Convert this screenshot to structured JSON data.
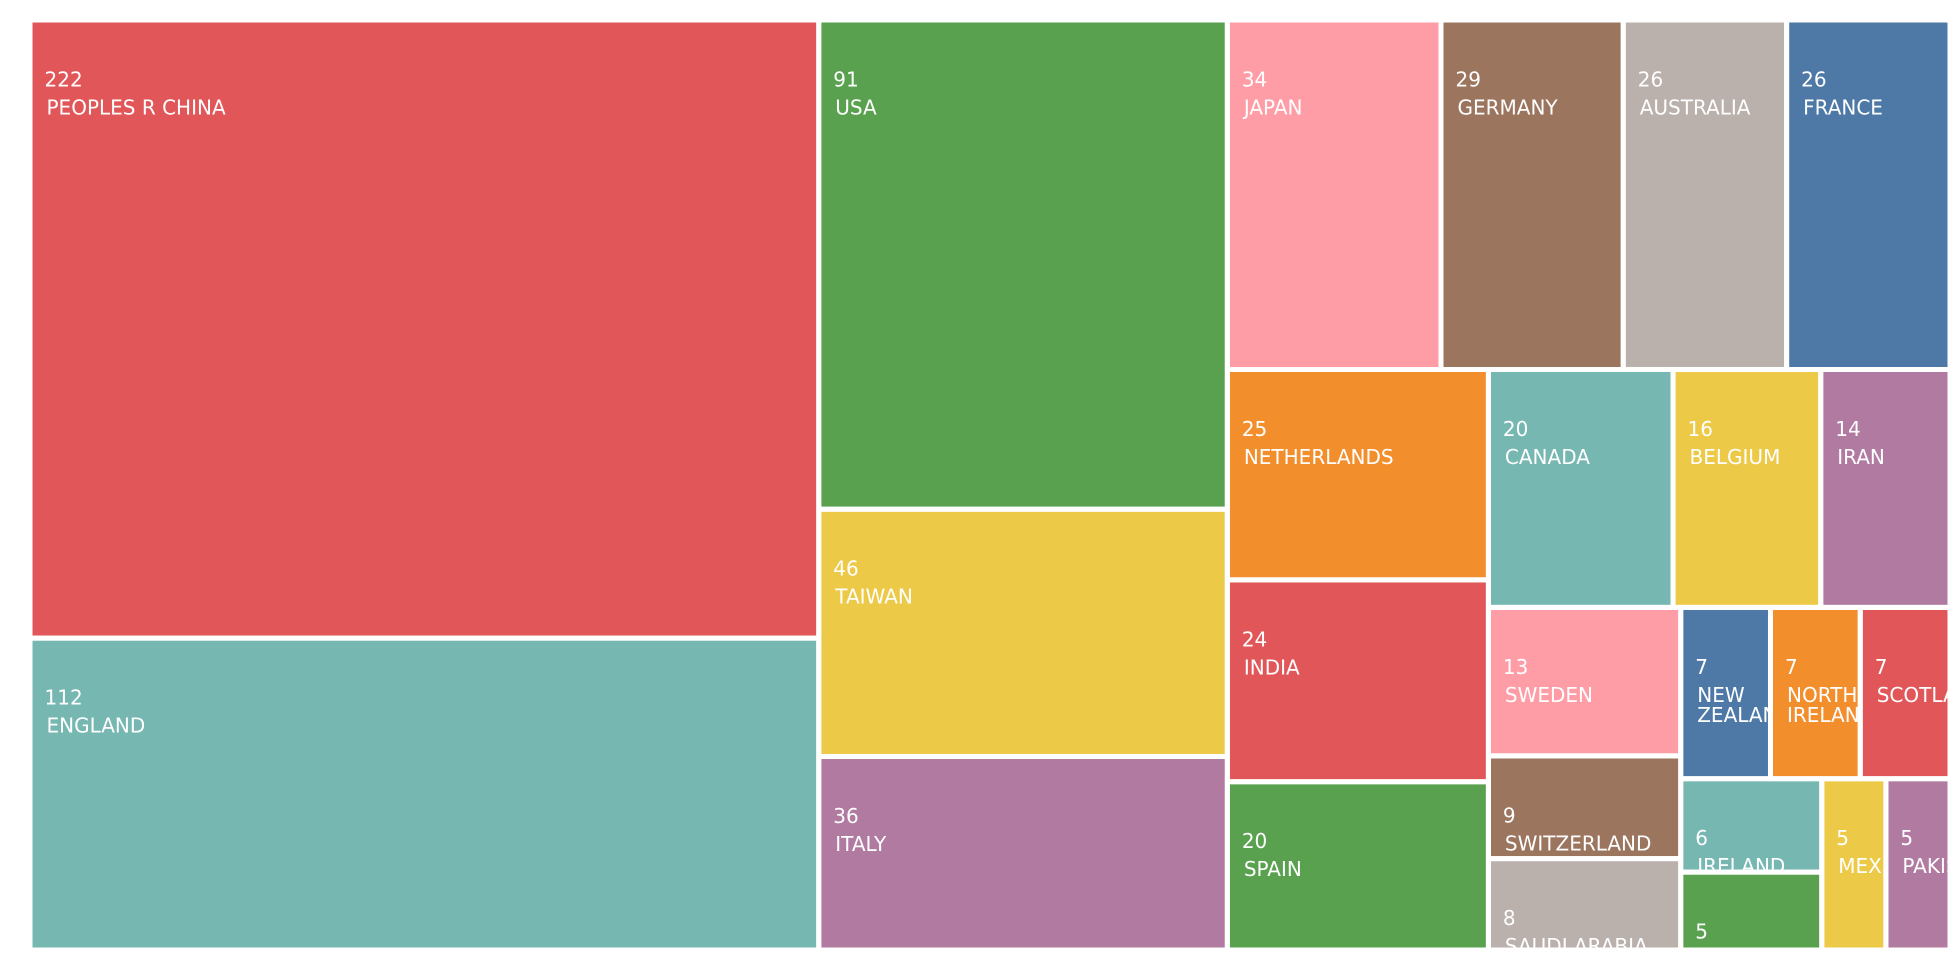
{
  "chart_data": {
    "type": "treemap",
    "categories": [
      "PEOPLES R CHINA",
      "ENGLAND",
      "USA",
      "TAIWAN",
      "ITALY",
      "JAPAN",
      "GERMANY",
      "AUSTRALIA",
      "FRANCE",
      "NETHERLANDS",
      "INDIA",
      "SPAIN",
      "CANADA",
      "BELGIUM",
      "IRAN",
      "SWEDEN",
      "SWITZERLAND",
      "SAUDI ARABIA",
      "NEW ZEALAND",
      "NORTH IRELAND",
      "SCOTLAND",
      "IRELAND",
      null,
      "MEXICO",
      "PAKISTAN"
    ],
    "values": [
      222,
      112,
      91,
      46,
      36,
      34,
      29,
      26,
      26,
      25,
      24,
      20,
      20,
      16,
      14,
      13,
      9,
      8,
      7,
      7,
      7,
      6,
      5,
      5,
      5
    ],
    "colors": [
      "#e15759",
      "#76b7b2",
      "#59a14f",
      "#edc948",
      "#b07aa1",
      "#ff9da7",
      "#9c755f",
      "#bab0ac",
      "#4e79a7",
      "#f28e2c",
      "#e15759",
      "#59a14f",
      "#76b7b2",
      "#edc948",
      "#b07aa1",
      "#ff9da7",
      "#9c755f",
      "#bab0ac",
      "#4e79a7",
      "#f28e2c",
      "#e15759",
      "#76b7b2",
      "#59a14f",
      "#edc948",
      "#b07aa1"
    ]
  }
}
